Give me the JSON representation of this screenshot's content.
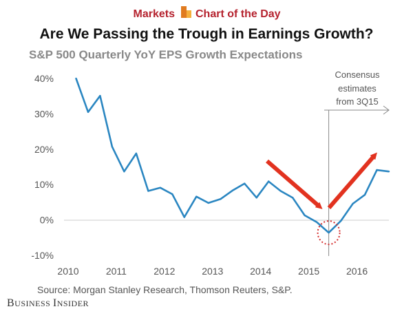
{
  "header": {
    "brand_left": "Markets",
    "brand_right": "Chart of the Day"
  },
  "footer": {
    "source": "Source: Morgan Stanley Research, Thomson Reuters, S&P.",
    "publisher_first": "B",
    "publisher_first_rest": "USINESS ",
    "publisher_second": "I",
    "publisher_second_rest": "NSIDER"
  },
  "colors": {
    "line": "#2a86c1",
    "arrow": "#e2321f",
    "marker_circle": "#d42a2a",
    "brand": "#b5222e",
    "brand_icon_dark": "#e07b1f",
    "brand_icon_light": "#f5b03c"
  },
  "chart_data": {
    "type": "line",
    "title": "Are We Passing the Trough in Earnings Growth?",
    "subtitle": "S&P 500 Quarterly YoY EPS Growth Expectations",
    "xlabel": "",
    "ylabel": "",
    "xlim": [
      2010,
      2016.75
    ],
    "ylim": [
      -10,
      40
    ],
    "x_ticks": [
      2010,
      2011,
      2012,
      2013,
      2014,
      2015,
      2016
    ],
    "y_ticks": [
      40,
      30,
      20,
      10,
      0,
      -10
    ],
    "y_tick_labels": [
      "40%",
      "30%",
      "20%",
      "10%",
      "0%",
      "-10%"
    ],
    "grid": false,
    "series": [
      {
        "x": [
          2010.25,
          2010.5,
          2010.75,
          2011.0,
          2011.25,
          2011.5,
          2011.75,
          2012.0,
          2012.25,
          2012.5,
          2012.75,
          2013.0,
          2013.25,
          2013.5,
          2013.75,
          2014.0,
          2014.25,
          2014.5,
          2014.75,
          2015.0,
          2015.25,
          2015.5,
          2015.75,
          2016.0,
          2016.25,
          2016.5,
          2016.75
        ],
        "values": [
          40,
          30.5,
          35.1,
          20.7,
          13.7,
          18.8,
          8.2,
          9.1,
          7.3,
          0.8,
          6.6,
          4.8,
          5.9,
          8.3,
          10.3,
          6.3,
          10.9,
          8.2,
          6.3,
          1.3,
          -0.6,
          -3.6,
          -0.3,
          4.6,
          7.1,
          14.1,
          13.7
        ]
      }
    ],
    "annotations": {
      "consensus_label": [
        "Consensus",
        "estimates",
        "from 3Q15"
      ],
      "consensus_start_x": 2015.5,
      "trough_x": 2015.5,
      "trough_y": -3.6
    }
  }
}
